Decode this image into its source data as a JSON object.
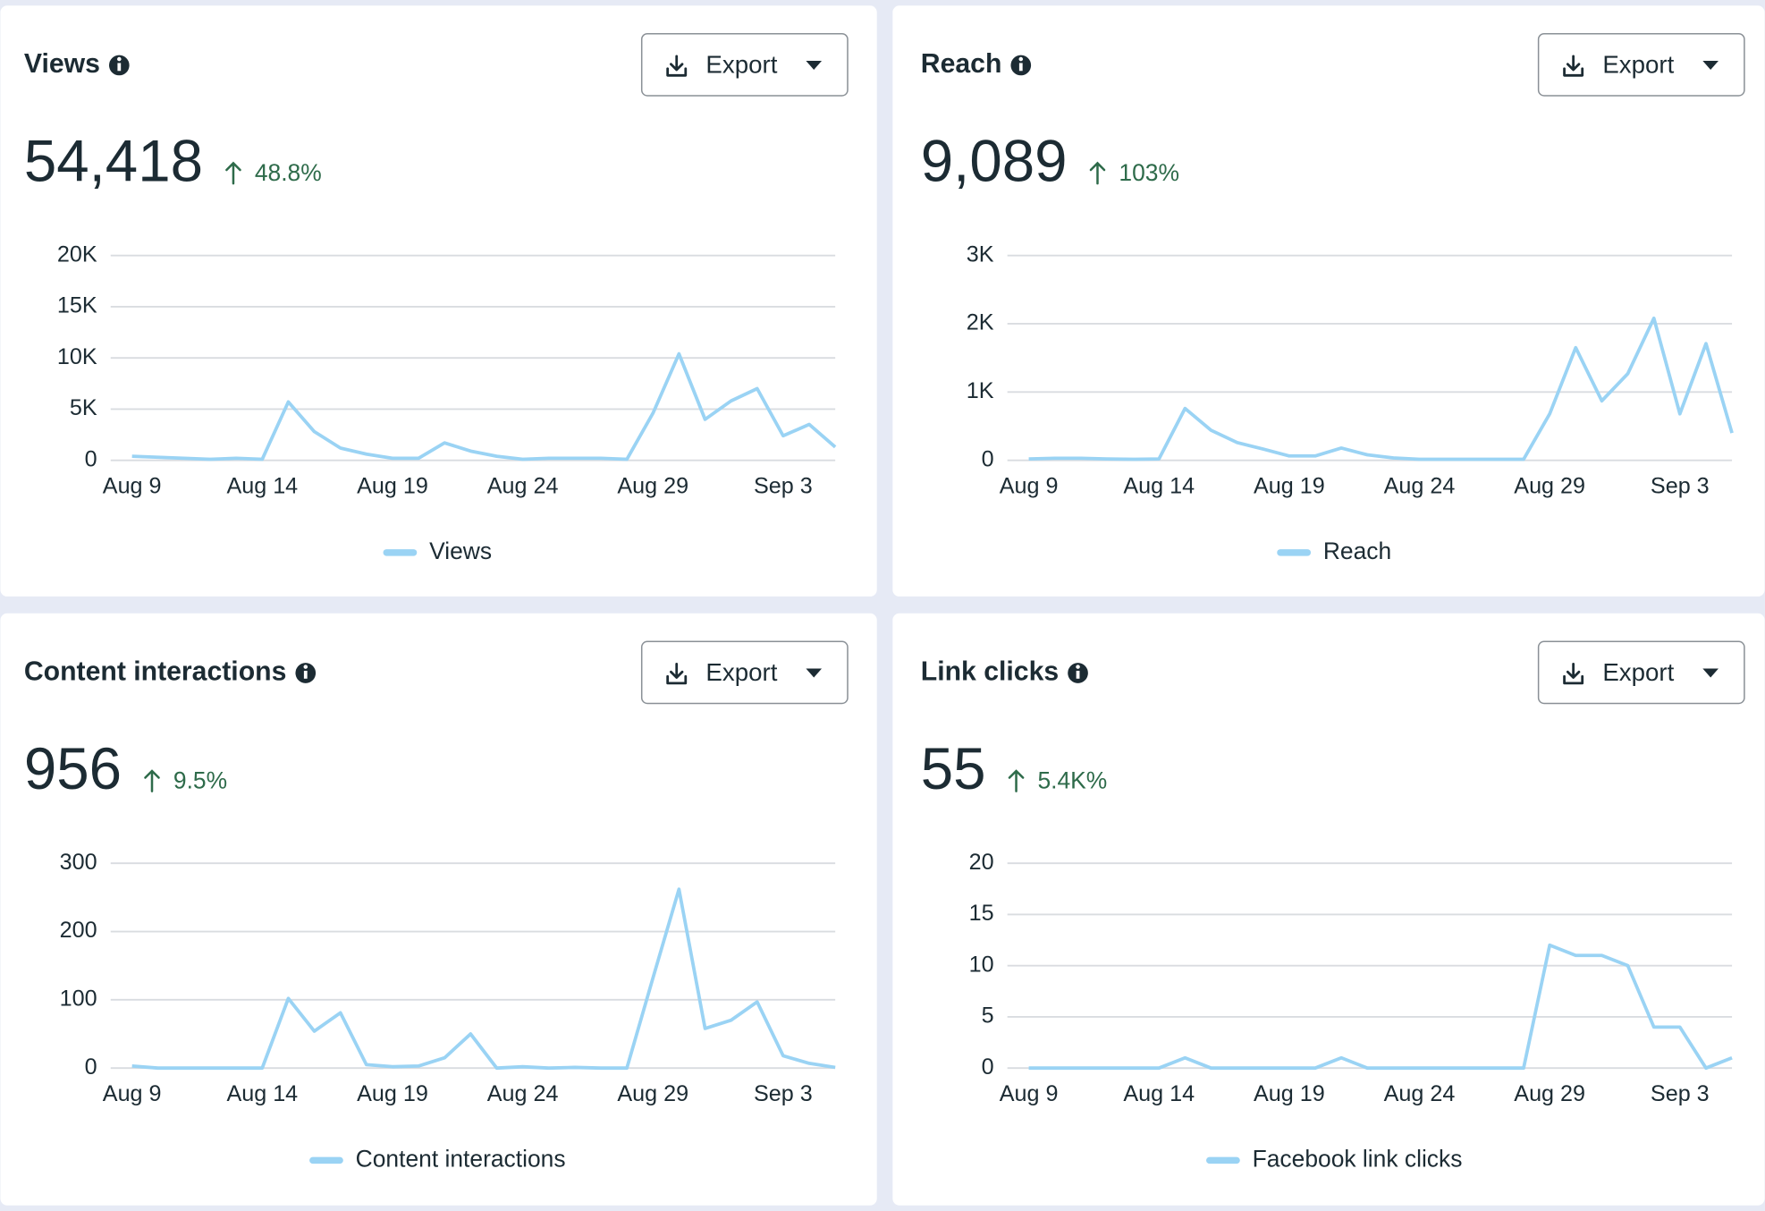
{
  "chart_data": [
    {
      "type": "line",
      "title": "Views",
      "total": "54,418",
      "change": "48.8%",
      "button_label": "Export",
      "categories": [
        "Aug 9",
        null,
        null,
        null,
        null,
        "Aug 14",
        null,
        null,
        null,
        null,
        "Aug 19",
        null,
        null,
        null,
        null,
        "Aug 24",
        null,
        null,
        null,
        null,
        "Aug 29",
        null,
        null,
        null,
        null,
        "Sep 3",
        null,
        null
      ],
      "series": [
        {
          "name": "Views",
          "color": "#9ad3f4",
          "values": [
            400,
            300,
            200,
            100,
            200,
            100,
            5700,
            2800,
            1200,
            600,
            200,
            200,
            1700,
            900,
            400,
            100,
            200,
            200,
            200,
            100,
            4600,
            10400,
            4000,
            5800,
            7000,
            2400,
            3500,
            1300
          ]
        }
      ],
      "ylim": [
        0,
        20000
      ],
      "yticks": [
        0,
        {
          "value": 5000,
          "label": "5K"
        },
        {
          "value": 10000,
          "label": "10K"
        },
        {
          "value": 15000,
          "label": "15K"
        },
        {
          "value": 20000,
          "label": "20K"
        }
      ],
      "grid": true
    },
    {
      "type": "line",
      "title": "Reach",
      "total": "9,089",
      "change": "103%",
      "button_label": "Export",
      "categories": [
        "Aug 9",
        null,
        null,
        null,
        null,
        "Aug 14",
        null,
        null,
        null,
        null,
        "Aug 19",
        null,
        null,
        null,
        null,
        "Aug 24",
        null,
        null,
        null,
        null,
        "Aug 29",
        null,
        null,
        null,
        null,
        "Sep 3",
        null,
        null
      ],
      "series": [
        {
          "name": "Reach",
          "color": "#9ad3f4",
          "values": [
            20,
            30,
            30,
            20,
            15,
            20,
            760,
            440,
            260,
            165,
            65,
            65,
            180,
            80,
            35,
            15,
            15,
            15,
            15,
            15,
            680,
            1650,
            870,
            1270,
            2080,
            680,
            1710,
            400
          ]
        }
      ],
      "ylim": [
        0,
        3000
      ],
      "yticks": [
        0,
        {
          "value": 1000,
          "label": "1K"
        },
        {
          "value": 2000,
          "label": "2K"
        },
        {
          "value": 3000,
          "label": "3K"
        }
      ],
      "grid": true
    },
    {
      "type": "line",
      "title": "Content interactions",
      "total": "956",
      "change": "9.5%",
      "button_label": "Export",
      "categories": [
        "Aug 9",
        null,
        null,
        null,
        null,
        "Aug 14",
        null,
        null,
        null,
        null,
        "Aug 19",
        null,
        null,
        null,
        null,
        "Aug 24",
        null,
        null,
        null,
        null,
        "Aug 29",
        null,
        null,
        null,
        null,
        "Sep 3",
        null,
        null
      ],
      "series": [
        {
          "name": "Content interactions",
          "color": "#9ad3f4",
          "values": [
            3,
            0,
            0,
            0,
            0,
            0,
            102,
            54,
            81,
            5,
            2,
            3,
            15,
            50,
            0,
            2,
            0,
            1,
            0,
            0,
            132,
            262,
            58,
            70,
            97,
            18,
            7,
            1
          ]
        }
      ],
      "ylim": [
        0,
        300
      ],
      "yticks": [
        0,
        100,
        200,
        300
      ],
      "grid": true
    },
    {
      "type": "line",
      "title": "Link clicks",
      "total": "55",
      "change": "5.4K%",
      "button_label": "Export",
      "categories": [
        "Aug 9",
        null,
        null,
        null,
        null,
        "Aug 14",
        null,
        null,
        null,
        null,
        "Aug 19",
        null,
        null,
        null,
        null,
        "Aug 24",
        null,
        null,
        null,
        null,
        "Aug 29",
        null,
        null,
        null,
        null,
        "Sep 3",
        null,
        null
      ],
      "series": [
        {
          "name": "Facebook link clicks",
          "color": "#9ad3f4",
          "values": [
            0,
            0,
            0,
            0,
            0,
            0,
            1,
            0,
            0,
            0,
            0,
            0,
            1,
            0,
            0,
            0,
            0,
            0,
            0,
            0,
            12,
            11,
            11,
            10,
            4,
            4,
            0,
            1
          ]
        }
      ],
      "ylim": [
        0,
        20
      ],
      "yticks": [
        0,
        5,
        10,
        15,
        20
      ],
      "grid": true
    }
  ]
}
